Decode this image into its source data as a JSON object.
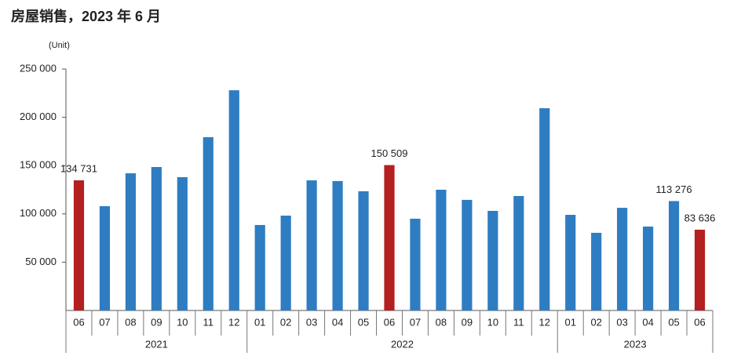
{
  "chart_data": {
    "type": "bar",
    "title": "房屋销售，2023 年 6 月",
    "y_label": "(Unit)",
    "groups": [
      {
        "name": "2021",
        "categories": [
          "06",
          "07",
          "08",
          "09",
          "10",
          "11",
          "12"
        ]
      },
      {
        "name": "2022",
        "categories": [
          "01",
          "02",
          "03",
          "04",
          "05",
          "06",
          "07",
          "08",
          "09",
          "10",
          "11",
          "12"
        ]
      },
      {
        "name": "2023",
        "categories": [
          "01",
          "02",
          "03",
          "04",
          "05",
          "06"
        ]
      }
    ],
    "values": [
      134731,
      108000,
      142000,
      148500,
      138000,
      179400,
      228000,
      88500,
      98200,
      134700,
      134000,
      123400,
      150509,
      95000,
      125000,
      114500,
      103100,
      118500,
      209400,
      99000,
      80400,
      106300,
      86900,
      113276,
      83636
    ],
    "value_labels": [
      "134 731",
      null,
      null,
      null,
      null,
      null,
      null,
      null,
      null,
      null,
      null,
      null,
      "150 509",
      null,
      null,
      null,
      null,
      null,
      null,
      null,
      null,
      null,
      null,
      "113 276",
      "83 636"
    ],
    "colors": [
      "#b41f1f",
      "#2e7dc2",
      "#2e7dc2",
      "#2e7dc2",
      "#2e7dc2",
      "#2e7dc2",
      "#2e7dc2",
      "#2e7dc2",
      "#2e7dc2",
      "#2e7dc2",
      "#2e7dc2",
      "#2e7dc2",
      "#b41f1f",
      "#2e7dc2",
      "#2e7dc2",
      "#2e7dc2",
      "#2e7dc2",
      "#2e7dc2",
      "#2e7dc2",
      "#2e7dc2",
      "#2e7dc2",
      "#2e7dc2",
      "#2e7dc2",
      "#2e7dc2",
      "#b41f1f"
    ],
    "ylim": [
      0,
      250000
    ],
    "yticks": [
      {
        "value": 50000,
        "label": "50 000"
      },
      {
        "value": 100000,
        "label": "100 000"
      },
      {
        "value": 150000,
        "label": "150 000"
      },
      {
        "value": 200000,
        "label": "200 000"
      },
      {
        "value": 250000,
        "label": "250 000"
      }
    ]
  }
}
